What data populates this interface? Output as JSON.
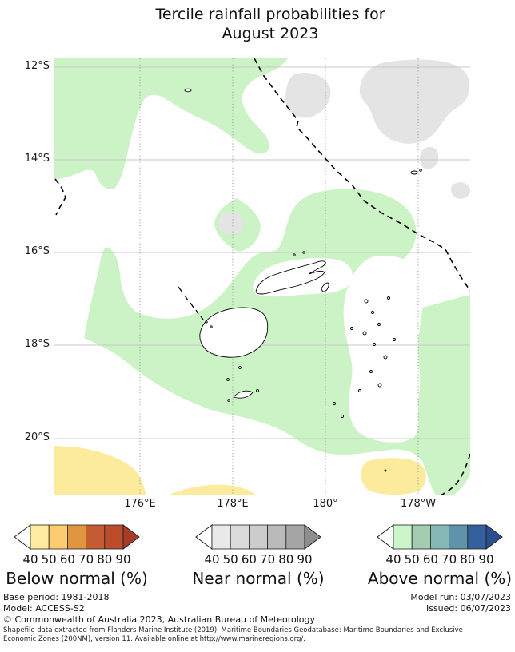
{
  "title": {
    "line1": "Tercile rainfall probabilities for",
    "line2": "August 2023"
  },
  "map": {
    "lat_ticks": [
      "12°S",
      "14°S",
      "16°S",
      "18°S",
      "20°S"
    ],
    "lon_ticks": [
      "176°E",
      "178°E",
      "180°",
      "178°W"
    ],
    "colors": {
      "above_normal_shading": "#ccf3c5",
      "near_normal_shading": "#e4e4e4",
      "below_normal_shading": "#fdeb9d",
      "coastline": "#000000",
      "eez_boundary": "#000000",
      "gridline_lat": "#c9c9c9",
      "gridline_lon": "#999999"
    },
    "shaded_categories_visible": [
      "Above normal 40-50% (pale green patches)",
      "Near normal 40-50% (grey patches)",
      "Below normal 40-50% (pale yellow patches)"
    ]
  },
  "legend": {
    "tick_labels": [
      "40",
      "50",
      "60",
      "70",
      "80",
      "90"
    ],
    "bars": [
      {
        "label": "Below normal (%)",
        "segment_colors": [
          "#feeb9f",
          "#fecb6e",
          "#e0953f",
          "#c45b31",
          "#bb4c2c"
        ],
        "left_arrow_color": "#ffffff",
        "right_arrow_color": "#a83b25"
      },
      {
        "label": "Near normal (%)",
        "segment_colors": [
          "#e9e9e9",
          "#dbdbdb",
          "#cccccc",
          "#bababa",
          "#a5a5a5"
        ],
        "left_arrow_color": "#ffffff",
        "right_arrow_color": "#8e8e8e"
      },
      {
        "label": "Above normal (%)",
        "segment_colors": [
          "#ccf5cb",
          "#a4ccb1",
          "#86b8b6",
          "#5e93aa",
          "#34619d"
        ],
        "left_arrow_color": "#ffffff",
        "right_arrow_color": "#2a4f8e"
      }
    ]
  },
  "footer": {
    "base_period": "Base period: 1981-2018",
    "model": "Model: ACCESS-S2",
    "model_run": "Model run: 03/07/2023",
    "issued": "Issued: 06/07/2023",
    "copyright": "© Commonwealth of Australia 2023, Australian Bureau of Meteorology",
    "shapefile_note_line1": "Shapefile data extracted from Flanders Marine Institute (2019), Maritime Boundaries Geodatabase: Maritime Boundaries and Exclusive",
    "shapefile_note_line2": "Economic Zones (200NM), version 11. Available online at http://www.marineregions.org/."
  }
}
